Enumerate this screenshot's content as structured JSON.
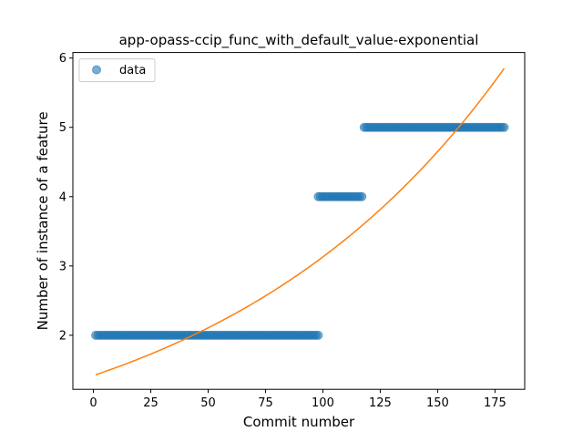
{
  "chart_data": {
    "type": "scatter",
    "title": "app-opass-ccip_func_with_default_value-exponential",
    "xlabel": "Commit number",
    "ylabel": "Number of instance of a feature",
    "xlim": [
      -8.95,
      187.95
    ],
    "ylim": [
      1.22,
      6.08
    ],
    "xticks": [
      0,
      25,
      50,
      75,
      100,
      125,
      150,
      175
    ],
    "yticks": [
      2,
      3,
      4,
      5,
      6
    ],
    "grid": false,
    "legend": {
      "position": "top-left",
      "entries": [
        "data"
      ]
    },
    "series": [
      {
        "name": "data",
        "kind": "scatter",
        "color": "#1f77b4",
        "alpha": 0.6,
        "runs": [
          {
            "x_start": 1,
            "x_end": 98,
            "y": 2
          },
          {
            "x_start": 98,
            "x_end": 117,
            "y": 4
          },
          {
            "x_start": 118,
            "x_end": 179,
            "y": 5
          }
        ]
      },
      {
        "kind": "line",
        "color": "#ff7f0e",
        "function": "exponential",
        "x": [
          1,
          20,
          40,
          60,
          80,
          100,
          120,
          140,
          160,
          179
        ],
        "y": [
          1.43,
          1.71,
          2.06,
          2.49,
          2.98,
          3.31,
          3.83,
          4.45,
          5.1,
          5.85
        ]
      }
    ]
  }
}
